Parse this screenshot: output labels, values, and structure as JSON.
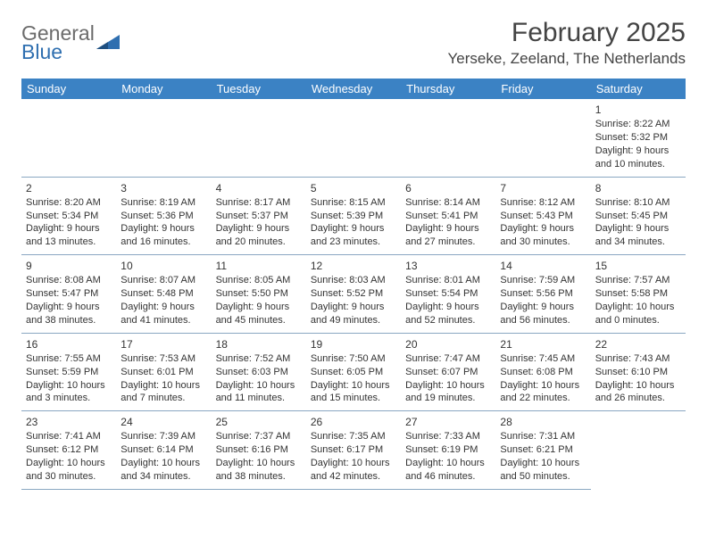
{
  "brand": {
    "word1": "General",
    "word2": "Blue"
  },
  "title": "February 2025",
  "location": "Yerseke, Zeeland, The Netherlands",
  "colors": {
    "header_bg": "#3b82c4",
    "header_text": "#ffffff",
    "border": "#8aa7c2",
    "text": "#333333",
    "brand_gray": "#6b6b6b",
    "brand_blue": "#2f6fb0",
    "background": "#ffffff"
  },
  "typography": {
    "title_fontsize": 30,
    "location_fontsize": 17,
    "dayheader_fontsize": 13,
    "daynum_fontsize": 12,
    "body_fontsize": 11
  },
  "layout": {
    "columns": 7,
    "rows": 5,
    "leading_blanks": 6
  },
  "day_headers": [
    "Sunday",
    "Monday",
    "Tuesday",
    "Wednesday",
    "Thursday",
    "Friday",
    "Saturday"
  ],
  "days": [
    {
      "n": "1",
      "sunrise": "Sunrise: 8:22 AM",
      "sunset": "Sunset: 5:32 PM",
      "d1": "Daylight: 9 hours",
      "d2": "and 10 minutes."
    },
    {
      "n": "2",
      "sunrise": "Sunrise: 8:20 AM",
      "sunset": "Sunset: 5:34 PM",
      "d1": "Daylight: 9 hours",
      "d2": "and 13 minutes."
    },
    {
      "n": "3",
      "sunrise": "Sunrise: 8:19 AM",
      "sunset": "Sunset: 5:36 PM",
      "d1": "Daylight: 9 hours",
      "d2": "and 16 minutes."
    },
    {
      "n": "4",
      "sunrise": "Sunrise: 8:17 AM",
      "sunset": "Sunset: 5:37 PM",
      "d1": "Daylight: 9 hours",
      "d2": "and 20 minutes."
    },
    {
      "n": "5",
      "sunrise": "Sunrise: 8:15 AM",
      "sunset": "Sunset: 5:39 PM",
      "d1": "Daylight: 9 hours",
      "d2": "and 23 minutes."
    },
    {
      "n": "6",
      "sunrise": "Sunrise: 8:14 AM",
      "sunset": "Sunset: 5:41 PM",
      "d1": "Daylight: 9 hours",
      "d2": "and 27 minutes."
    },
    {
      "n": "7",
      "sunrise": "Sunrise: 8:12 AM",
      "sunset": "Sunset: 5:43 PM",
      "d1": "Daylight: 9 hours",
      "d2": "and 30 minutes."
    },
    {
      "n": "8",
      "sunrise": "Sunrise: 8:10 AM",
      "sunset": "Sunset: 5:45 PM",
      "d1": "Daylight: 9 hours",
      "d2": "and 34 minutes."
    },
    {
      "n": "9",
      "sunrise": "Sunrise: 8:08 AM",
      "sunset": "Sunset: 5:47 PM",
      "d1": "Daylight: 9 hours",
      "d2": "and 38 minutes."
    },
    {
      "n": "10",
      "sunrise": "Sunrise: 8:07 AM",
      "sunset": "Sunset: 5:48 PM",
      "d1": "Daylight: 9 hours",
      "d2": "and 41 minutes."
    },
    {
      "n": "11",
      "sunrise": "Sunrise: 8:05 AM",
      "sunset": "Sunset: 5:50 PM",
      "d1": "Daylight: 9 hours",
      "d2": "and 45 minutes."
    },
    {
      "n": "12",
      "sunrise": "Sunrise: 8:03 AM",
      "sunset": "Sunset: 5:52 PM",
      "d1": "Daylight: 9 hours",
      "d2": "and 49 minutes."
    },
    {
      "n": "13",
      "sunrise": "Sunrise: 8:01 AM",
      "sunset": "Sunset: 5:54 PM",
      "d1": "Daylight: 9 hours",
      "d2": "and 52 minutes."
    },
    {
      "n": "14",
      "sunrise": "Sunrise: 7:59 AM",
      "sunset": "Sunset: 5:56 PM",
      "d1": "Daylight: 9 hours",
      "d2": "and 56 minutes."
    },
    {
      "n": "15",
      "sunrise": "Sunrise: 7:57 AM",
      "sunset": "Sunset: 5:58 PM",
      "d1": "Daylight: 10 hours",
      "d2": "and 0 minutes."
    },
    {
      "n": "16",
      "sunrise": "Sunrise: 7:55 AM",
      "sunset": "Sunset: 5:59 PM",
      "d1": "Daylight: 10 hours",
      "d2": "and 3 minutes."
    },
    {
      "n": "17",
      "sunrise": "Sunrise: 7:53 AM",
      "sunset": "Sunset: 6:01 PM",
      "d1": "Daylight: 10 hours",
      "d2": "and 7 minutes."
    },
    {
      "n": "18",
      "sunrise": "Sunrise: 7:52 AM",
      "sunset": "Sunset: 6:03 PM",
      "d1": "Daylight: 10 hours",
      "d2": "and 11 minutes."
    },
    {
      "n": "19",
      "sunrise": "Sunrise: 7:50 AM",
      "sunset": "Sunset: 6:05 PM",
      "d1": "Daylight: 10 hours",
      "d2": "and 15 minutes."
    },
    {
      "n": "20",
      "sunrise": "Sunrise: 7:47 AM",
      "sunset": "Sunset: 6:07 PM",
      "d1": "Daylight: 10 hours",
      "d2": "and 19 minutes."
    },
    {
      "n": "21",
      "sunrise": "Sunrise: 7:45 AM",
      "sunset": "Sunset: 6:08 PM",
      "d1": "Daylight: 10 hours",
      "d2": "and 22 minutes."
    },
    {
      "n": "22",
      "sunrise": "Sunrise: 7:43 AM",
      "sunset": "Sunset: 6:10 PM",
      "d1": "Daylight: 10 hours",
      "d2": "and 26 minutes."
    },
    {
      "n": "23",
      "sunrise": "Sunrise: 7:41 AM",
      "sunset": "Sunset: 6:12 PM",
      "d1": "Daylight: 10 hours",
      "d2": "and 30 minutes."
    },
    {
      "n": "24",
      "sunrise": "Sunrise: 7:39 AM",
      "sunset": "Sunset: 6:14 PM",
      "d1": "Daylight: 10 hours",
      "d2": "and 34 minutes."
    },
    {
      "n": "25",
      "sunrise": "Sunrise: 7:37 AM",
      "sunset": "Sunset: 6:16 PM",
      "d1": "Daylight: 10 hours",
      "d2": "and 38 minutes."
    },
    {
      "n": "26",
      "sunrise": "Sunrise: 7:35 AM",
      "sunset": "Sunset: 6:17 PM",
      "d1": "Daylight: 10 hours",
      "d2": "and 42 minutes."
    },
    {
      "n": "27",
      "sunrise": "Sunrise: 7:33 AM",
      "sunset": "Sunset: 6:19 PM",
      "d1": "Daylight: 10 hours",
      "d2": "and 46 minutes."
    },
    {
      "n": "28",
      "sunrise": "Sunrise: 7:31 AM",
      "sunset": "Sunset: 6:21 PM",
      "d1": "Daylight: 10 hours",
      "d2": "and 50 minutes."
    }
  ]
}
